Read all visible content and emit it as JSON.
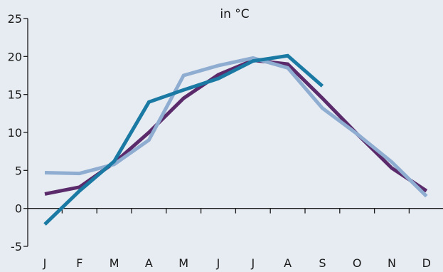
{
  "chart_data": {
    "type": "line",
    "title": "in °C",
    "xlabel": "",
    "ylabel": "",
    "categories": [
      "J",
      "F",
      "M",
      "A",
      "M",
      "J",
      "J",
      "A",
      "S",
      "O",
      "N",
      "D"
    ],
    "ylim": [
      -5,
      25
    ],
    "yticks": [
      "-5",
      "0",
      "5",
      "10",
      "15",
      "20",
      "25"
    ],
    "grid": false,
    "legend": "none",
    "series": [
      {
        "color": "#5a2a6b",
        "values": [
          1.9,
          2.8,
          6.0,
          10.0,
          14.5,
          17.6,
          19.5,
          19.0,
          14.5,
          9.8,
          5.3,
          2.3
        ]
      },
      {
        "color": "#8fadd1",
        "values": [
          4.7,
          4.6,
          5.8,
          9.0,
          17.5,
          18.8,
          19.8,
          18.5,
          13.2,
          9.8,
          6.1,
          1.6
        ]
      },
      {
        "color": "#1a7aa4",
        "values": [
          -2.1,
          2.3,
          6.2,
          14.0,
          15.6,
          17.1,
          19.4,
          20.1,
          16.1,
          null,
          null,
          null
        ]
      }
    ]
  }
}
